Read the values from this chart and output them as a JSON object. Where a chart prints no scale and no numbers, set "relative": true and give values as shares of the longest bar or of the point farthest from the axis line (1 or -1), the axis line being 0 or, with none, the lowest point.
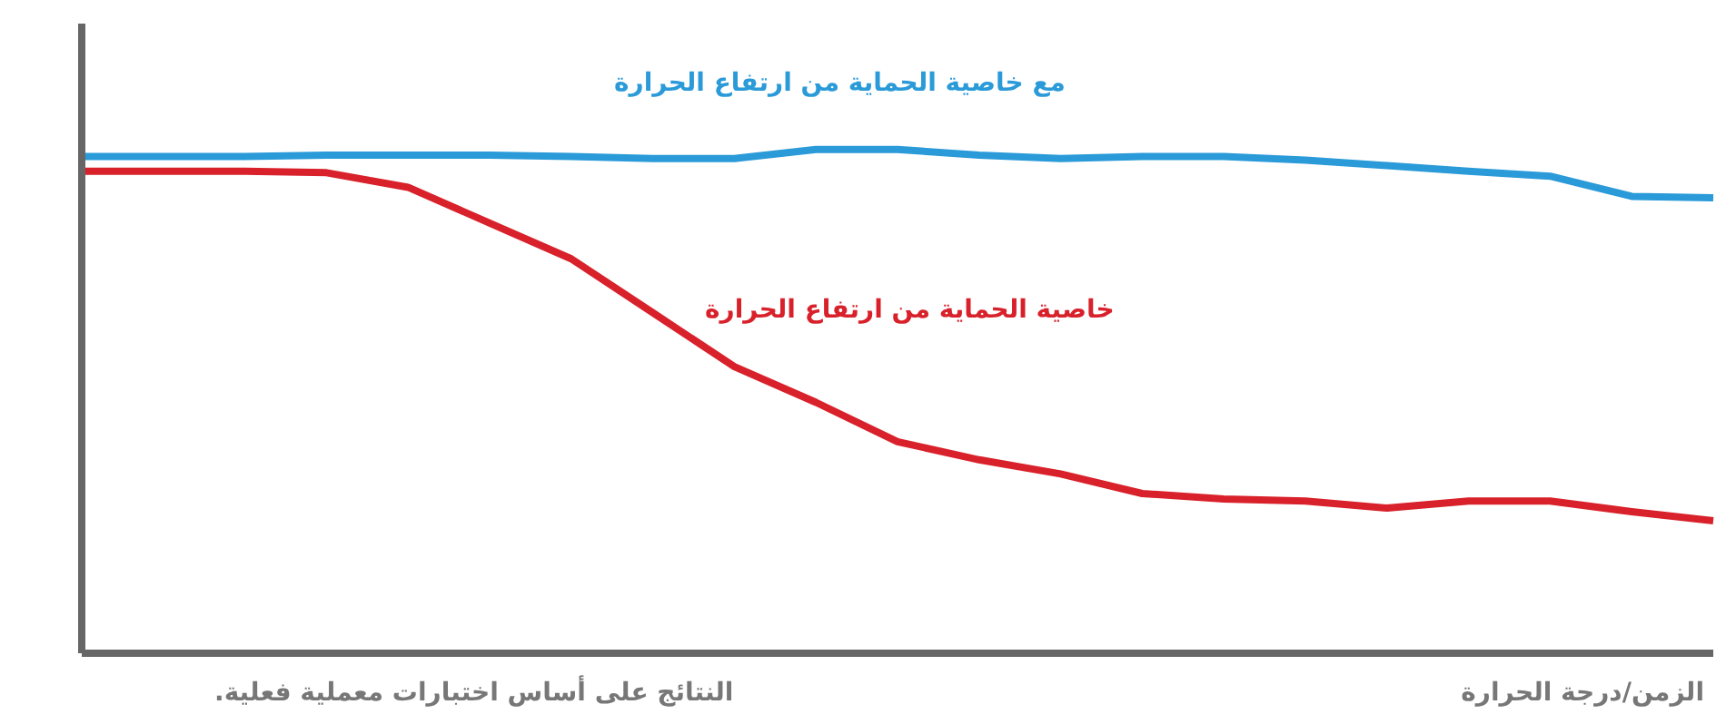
{
  "chart_data": {
    "type": "line",
    "relative": true,
    "xlabel": "الزمن/درجة الحرارة",
    "annotations": [
      "النتائج على أساس اختبارات معملية فعلية."
    ],
    "categories": [
      null,
      null,
      null,
      null,
      null,
      null,
      null,
      null,
      null,
      null,
      null,
      null,
      null,
      null,
      null,
      null,
      null,
      null,
      null,
      null,
      null
    ],
    "series": [
      {
        "name": "مع خاصية الحماية من ارتفاع الحرارة",
        "color": "#2a9ad8",
        "values": [
          0.986,
          0.986,
          0.986,
          0.989,
          0.989,
          0.989,
          0.986,
          0.982,
          0.982,
          1.0,
          1.0,
          0.989,
          0.982,
          0.986,
          0.986,
          0.979,
          0.968,
          0.957,
          0.947,
          0.907,
          0.904
        ]
      },
      {
        "name": "خاصية الحماية من ارتفاع الحرارة",
        "color": "#d8212a",
        "values": [
          0.957,
          0.957,
          0.957,
          0.954,
          0.925,
          0.854,
          0.783,
          0.676,
          0.569,
          0.498,
          0.42,
          0.384,
          0.356,
          0.317,
          0.306,
          0.302,
          0.288,
          0.302,
          0.302,
          0.281,
          0.263
        ]
      }
    ],
    "grid": false,
    "marker": "none",
    "line_style": "solid"
  }
}
